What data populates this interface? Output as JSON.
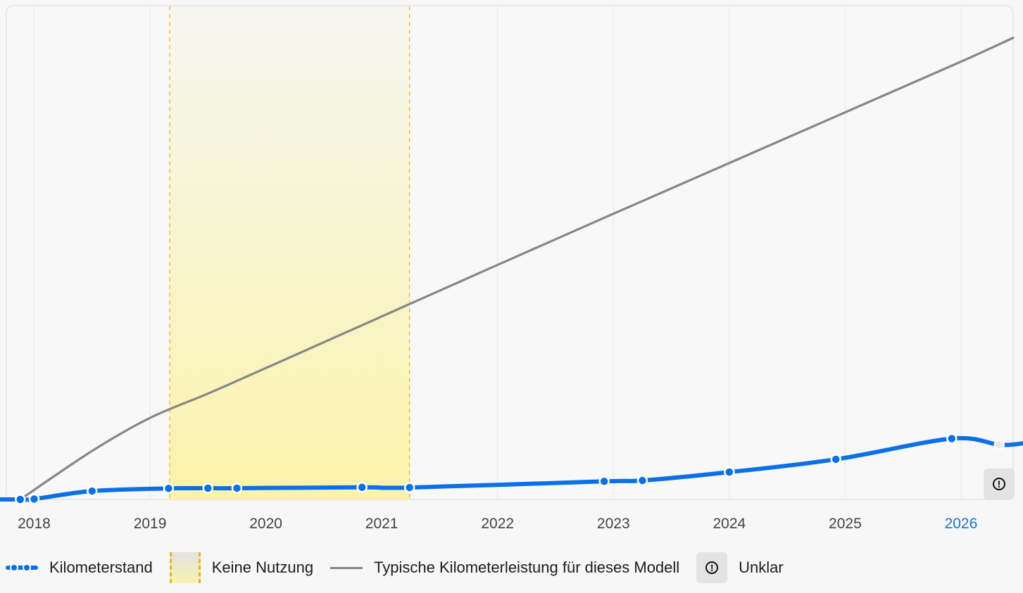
{
  "chart_data": {
    "type": "line",
    "x_ticks": [
      "2018",
      "2019",
      "2020",
      "2021",
      "2022",
      "2023",
      "2024",
      "2025",
      "2026"
    ],
    "highlighted_tick": "2026",
    "xlim": [
      2017.76,
      2026.45
    ],
    "grid": true,
    "series": [
      {
        "name": "Kilometerstand",
        "style": "line-with-markers",
        "color": "#0a70e8",
        "points": [
          {
            "x": 2017.88,
            "y": 0
          },
          {
            "x": 2018.0,
            "y": 100
          },
          {
            "x": 2018.5,
            "y": 1900
          },
          {
            "x": 2019.16,
            "y": 2500
          },
          {
            "x": 2019.5,
            "y": 2550
          },
          {
            "x": 2019.75,
            "y": 2550
          },
          {
            "x": 2020.83,
            "y": 2750
          },
          {
            "x": 2021.24,
            "y": 2700
          },
          {
            "x": 2022.92,
            "y": 4100
          },
          {
            "x": 2023.25,
            "y": 4300
          },
          {
            "x": 2024.0,
            "y": 6200
          },
          {
            "x": 2024.92,
            "y": 9100
          },
          {
            "x": 2025.92,
            "y": 13800
          },
          {
            "x": 2026.33,
            "y": 12400,
            "unclear": true
          }
        ]
      },
      {
        "name": "Typische Kilometerleistung für dieses Modell",
        "style": "line",
        "color": "#868686",
        "points": [
          {
            "x": 2017.88,
            "y": 0
          },
          {
            "x": 2018.5,
            "y": 11000
          },
          {
            "x": 2019.0,
            "y": 18500
          },
          {
            "x": 2019.5,
            "y": 24000
          },
          {
            "x": 2020.0,
            "y": 29800
          },
          {
            "x": 2021.0,
            "y": 41500
          },
          {
            "x": 2022.0,
            "y": 53200
          },
          {
            "x": 2023.0,
            "y": 64800
          },
          {
            "x": 2024.0,
            "y": 76300
          },
          {
            "x": 2025.0,
            "y": 87800
          },
          {
            "x": 2026.0,
            "y": 99300
          },
          {
            "x": 2026.45,
            "y": 104700
          }
        ]
      }
    ],
    "ylim": [
      0,
      112000
    ],
    "shaded_regions": [
      {
        "name": "Keine Nutzung",
        "x_start": 2019.17,
        "x_end": 2021.24,
        "color": "#fbf3a6"
      }
    ],
    "unclear_marker": "Unklar"
  },
  "legend": {
    "items": [
      {
        "label": "Kilometerstand",
        "icon": "dashed-dot-line-icon"
      },
      {
        "label": "Keine Nutzung",
        "icon": "shaded-band-icon"
      },
      {
        "label": "Typische Kilometerleistung für dieses Modell",
        "icon": "gray-line-icon"
      },
      {
        "label": "Unklar",
        "icon": "warning-circle-icon"
      }
    ]
  },
  "colors": {
    "accent": "#0a70e8",
    "typical": "#868686",
    "no_use_band": "#fbf3a6",
    "no_use_border": "#f2b20c",
    "grid": "#e6e6e6",
    "tick_text": "#444444",
    "tick_highlight": "#1a73d9"
  }
}
